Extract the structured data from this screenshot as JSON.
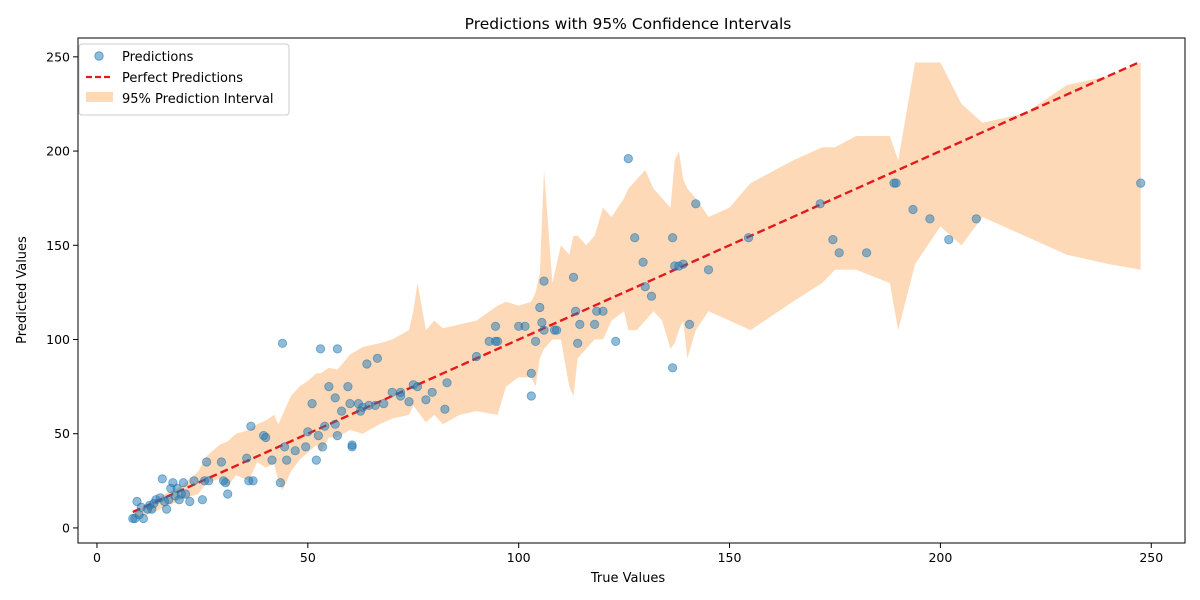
{
  "chart_data": {
    "type": "scatter",
    "title": "Predictions with 95% Confidence Intervals",
    "xlabel": "True Values",
    "ylabel": "Predicted Values",
    "xlim": [
      -4.5,
      258
    ],
    "ylim": [
      -8,
      260
    ],
    "xticks": [
      0,
      50,
      100,
      150,
      200,
      250
    ],
    "yticks": [
      0,
      50,
      100,
      150,
      200,
      250
    ],
    "grid": false,
    "legend_position": "top-left",
    "colors": {
      "points": "#1f77b4",
      "perfect_line": "#e31a1c",
      "interval": "#fdd9b8"
    },
    "series": [
      {
        "name": "Predictions",
        "kind": "scatter",
        "x": [
          8.5,
          9.0,
          9.5,
          10.0,
          10.5,
          11.0,
          12.0,
          12.5,
          13.0,
          13.5,
          14.0,
          15.0,
          15.5,
          16.0,
          16.5,
          17.0,
          17.5,
          18.0,
          18.5,
          19.0,
          19.5,
          20.0,
          20.5,
          21.0,
          22.0,
          23.0,
          25.0,
          25.5,
          26.0,
          26.5,
          29.5,
          30.0,
          30.5,
          31.0,
          35.5,
          36.0,
          36.5,
          37.0,
          39.5,
          40.0,
          41.5,
          43.5,
          44.0,
          44.5,
          45.0,
          47.0,
          49.5,
          50.0,
          51.0,
          52.0,
          52.5,
          53.0,
          53.5,
          54.0,
          55.0,
          56.5,
          56.5,
          57.0,
          57.0,
          58.0,
          59.5,
          60.0,
          60.5,
          60.5,
          62.0,
          62.5,
          63.0,
          64.0,
          64.5,
          66.0,
          66.5,
          68.0,
          70.0,
          72.0,
          72.0,
          74.0,
          75.0,
          76.0,
          78.0,
          79.5,
          82.5,
          83.0,
          90.0,
          93.0,
          94.5,
          94.5,
          95.0,
          100.0,
          101.5,
          103.0,
          103.0,
          104.0,
          105.0,
          105.5,
          106.0,
          106.0,
          108.5,
          109.0,
          113.0,
          113.5,
          114.0,
          114.5,
          118.0,
          118.5,
          120.0,
          123.0,
          126.0,
          127.5,
          129.5,
          130.0,
          131.5,
          136.5,
          136.5,
          137.0,
          138.0,
          139.0,
          140.5,
          142.0,
          145.0,
          154.5,
          171.5,
          174.5,
          176.0,
          182.5,
          189.0,
          189.5,
          193.5,
          197.5,
          202.0,
          208.5,
          247.5
        ],
        "y": [
          5,
          5,
          14,
          7,
          11,
          5,
          10,
          12,
          10,
          13,
          15,
          16,
          26,
          14,
          10,
          15,
          21,
          24,
          17,
          21,
          15,
          18,
          24,
          18,
          14,
          25,
          15,
          25,
          35,
          25,
          35,
          25,
          24,
          18,
          37,
          25,
          54,
          25,
          49,
          48,
          36,
          24,
          98,
          43,
          36,
          41,
          43,
          51,
          66,
          36,
          49,
          95,
          43,
          54,
          75,
          55,
          69,
          49,
          95,
          62,
          75,
          66,
          43,
          44,
          66,
          62,
          64,
          87,
          65,
          65,
          90,
          66,
          72,
          70,
          72,
          67,
          76,
          75,
          68,
          72,
          63,
          77,
          91,
          99,
          107,
          99,
          99,
          107,
          107,
          82,
          70,
          99,
          117,
          109,
          105,
          131,
          105,
          105,
          133,
          115,
          98,
          108,
          108,
          115,
          115,
          99,
          196,
          154,
          141,
          128,
          123,
          85,
          154,
          139,
          139,
          140,
          108,
          172,
          137,
          154,
          172,
          153,
          146,
          146,
          183,
          183,
          169,
          164,
          153,
          164,
          183
        ]
      },
      {
        "name": "Perfect Predictions",
        "kind": "line",
        "x": [
          8.5,
          247.5
        ],
        "y": [
          8.5,
          247.5
        ]
      },
      {
        "name": "95% Prediction Interval",
        "kind": "band",
        "x": [
          8.5,
          12,
          16,
          20,
          24,
          26,
          29,
          31,
          33,
          36,
          38,
          40,
          42,
          43,
          44,
          46,
          48,
          50,
          52,
          53,
          55,
          57,
          60,
          63,
          67,
          70,
          74,
          75,
          76,
          78,
          80,
          82,
          86,
          90,
          95,
          97,
          100,
          103,
          104,
          105,
          106,
          108,
          110,
          112,
          113,
          114,
          116,
          118,
          120,
          122,
          125,
          126,
          128,
          130,
          132,
          134,
          136,
          137,
          138,
          139,
          140,
          142,
          145,
          150,
          155,
          165,
          172,
          175,
          180,
          188,
          190,
          194,
          200,
          205,
          210,
          220,
          230,
          240,
          247.5
        ],
        "lower": [
          5,
          7,
          11,
          15,
          18,
          24,
          26,
          22,
          28,
          25,
          35,
          32,
          34,
          25,
          20,
          30,
          36,
          40,
          44,
          40,
          48,
          48,
          52,
          50,
          55,
          58,
          60,
          65,
          62,
          56,
          60,
          55,
          60,
          62,
          60,
          75,
          80,
          80,
          75,
          90,
          95,
          100,
          100,
          75,
          70,
          90,
          95,
          100,
          100,
          110,
          115,
          105,
          105,
          110,
          115,
          110,
          95,
          98,
          105,
          110,
          90,
          105,
          115,
          110,
          105,
          120,
          130,
          137,
          137,
          130,
          105,
          140,
          160,
          150,
          165,
          155,
          145,
          140,
          137
        ],
        "upper": [
          9,
          12,
          18,
          22,
          30,
          38,
          44,
          46,
          50,
          52,
          55,
          57,
          60,
          55,
          60,
          70,
          75,
          78,
          82,
          82,
          85,
          84,
          92,
          96,
          98,
          100,
          105,
          115,
          130,
          105,
          110,
          106,
          108,
          110,
          118,
          120,
          118,
          120,
          125,
          135,
          190,
          130,
          150,
          145,
          155,
          155,
          150,
          155,
          170,
          165,
          175,
          180,
          185,
          190,
          180,
          175,
          170,
          195,
          200,
          185,
          180,
          175,
          165,
          170,
          183,
          195,
          202,
          202,
          208,
          208,
          195,
          247,
          247,
          225,
          215,
          220,
          235,
          240,
          247
        ]
      }
    ]
  }
}
